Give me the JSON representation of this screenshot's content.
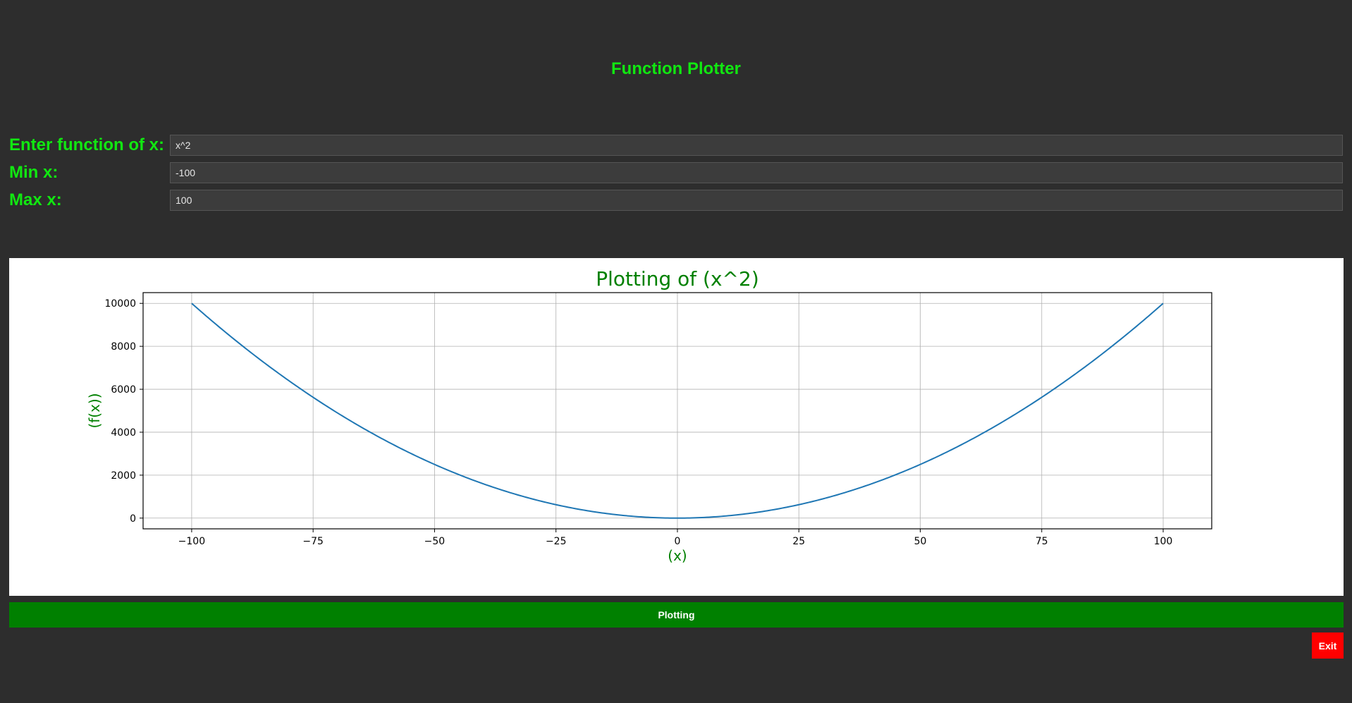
{
  "app": {
    "title": "Function Plotter"
  },
  "form": {
    "function_label": "Enter function of x:",
    "function_value": "x^2",
    "min_label": "Min x:",
    "min_value": "-100",
    "max_label": "Max x:",
    "max_value": "100"
  },
  "buttons": {
    "plot_label": "Plotting",
    "exit_label": "Exit"
  },
  "colors": {
    "background": "#2d2d2d",
    "label": "#11e711",
    "plot_button": "#008000",
    "exit_button": "#ff0000",
    "line": "#1f77b4",
    "chart_text": "#008000"
  },
  "chart_data": {
    "type": "line",
    "title": "Plotting of (x^2)",
    "xlabel": "(x)",
    "ylabel": "(f(x))",
    "function": "x^2",
    "xlim": [
      -110,
      110
    ],
    "ylim": [
      -500,
      10500
    ],
    "x_ticks": [
      -100,
      -75,
      -50,
      -25,
      0,
      25,
      50,
      75,
      100
    ],
    "x_tick_labels": [
      "−100",
      "−75",
      "−50",
      "−25",
      "0",
      "25",
      "50",
      "75",
      "100"
    ],
    "y_ticks": [
      0,
      2000,
      4000,
      6000,
      8000,
      10000
    ],
    "y_tick_labels": [
      "0",
      "2000",
      "4000",
      "6000",
      "8000",
      "10000"
    ],
    "grid": true,
    "series": [
      {
        "x": [
          -100,
          -90,
          -80,
          -70,
          -60,
          -50,
          -40,
          -30,
          -20,
          -10,
          0,
          10,
          20,
          30,
          40,
          50,
          60,
          70,
          80,
          90,
          100
        ],
        "y": [
          10000,
          8100,
          6400,
          4900,
          3600,
          2500,
          1600,
          900,
          400,
          100,
          0,
          100,
          400,
          900,
          1600,
          2500,
          3600,
          4900,
          6400,
          8100,
          10000
        ]
      }
    ]
  }
}
